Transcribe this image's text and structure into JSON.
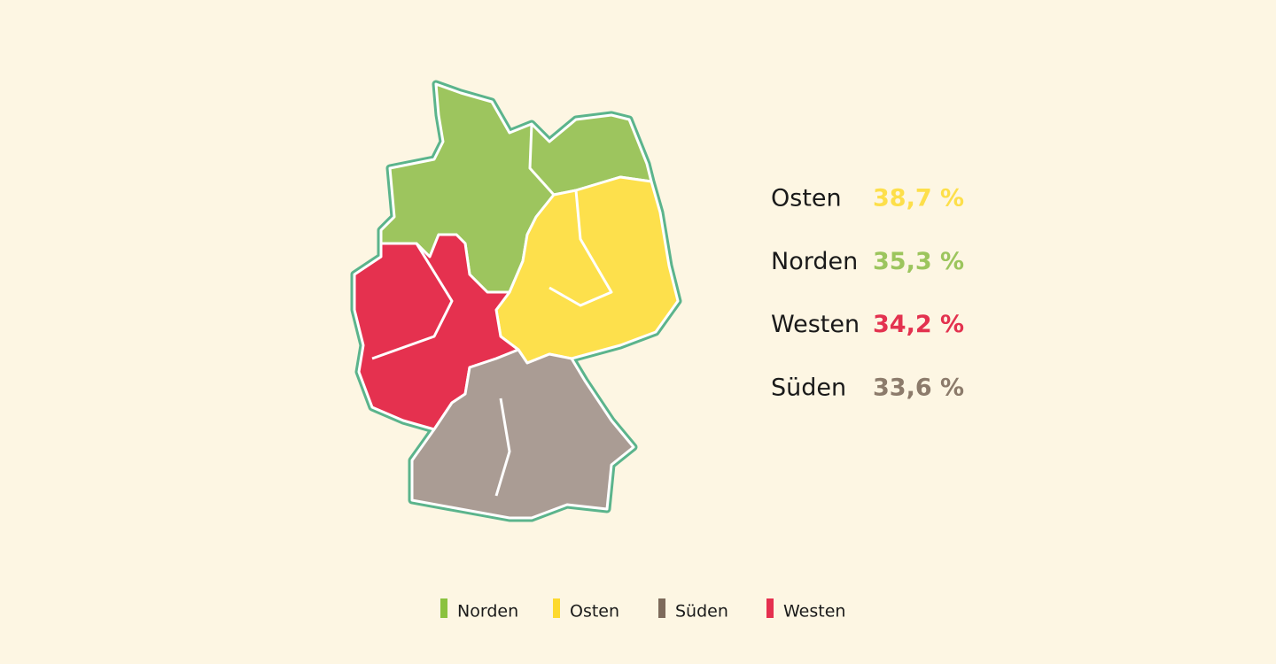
{
  "chart_data": {
    "type": "map",
    "categories": [
      "Osten",
      "Norden",
      "Westen",
      "Süden"
    ],
    "values": [
      38.7,
      35.3,
      34.2,
      33.6
    ],
    "value_labels": [
      "38,7 %",
      "35,3 %",
      "34,2 %",
      "33,6 %"
    ],
    "colors": [
      "#fddf4a",
      "#9cc55d",
      "#e3324f",
      "#8c7b6b"
    ],
    "region_colors": [
      "#fde04c",
      "#9dc55e",
      "#e5314f",
      "#aa9c94"
    ],
    "legend": [
      {
        "name": "Norden",
        "color": "#8ac23f"
      },
      {
        "name": "Osten",
        "color": "#fdd92e"
      },
      {
        "name": "Süden",
        "color": "#7d6a5b"
      },
      {
        "name": "Westen",
        "color": "#e5304f"
      }
    ]
  }
}
